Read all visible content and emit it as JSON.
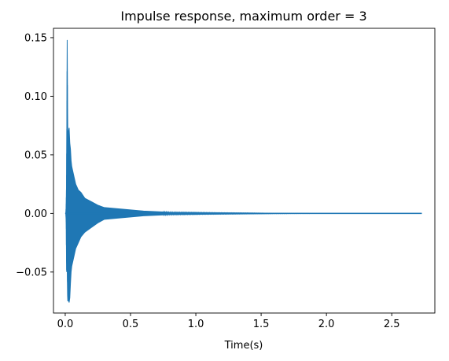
{
  "chart_data": {
    "type": "line",
    "title": "Impulse response, maximum order = 3",
    "xlabel": "Time(s)",
    "ylabel": "",
    "xlim": [
      -0.09,
      2.83
    ],
    "ylim": [
      -0.085,
      0.158
    ],
    "xticks": [
      0.0,
      0.5,
      1.0,
      1.5,
      2.0,
      2.5
    ],
    "xtick_labels": [
      "0.0",
      "0.5",
      "1.0",
      "1.5",
      "2.0",
      "2.5"
    ],
    "yticks": [
      -0.05,
      0.0,
      0.05,
      0.1,
      0.15
    ],
    "ytick_labels": [
      "−0.05",
      "0.00",
      "0.05",
      "0.10",
      "0.15"
    ],
    "grid": false,
    "colors": {
      "line": "#1f77b4",
      "axes": "#000000",
      "background": "#ffffff"
    },
    "series": [
      {
        "x": [
          0.0,
          0.005,
          0.008,
          0.01,
          0.012,
          0.015,
          0.018,
          0.02,
          0.022,
          0.025,
          0.03,
          0.035,
          0.04,
          0.045,
          0.05,
          0.06,
          0.07,
          0.08,
          0.1,
          0.12,
          0.15,
          0.2,
          0.25,
          0.3,
          0.4,
          0.5,
          0.6,
          0.7,
          0.8,
          1.0,
          1.2,
          1.4,
          1.6,
          1.8,
          2.0,
          2.2,
          2.4,
          2.6,
          2.73
        ],
        "upper": [
          0.0,
          0.0,
          0.01,
          0.027,
          0.07,
          0.148,
          0.09,
          0.065,
          0.055,
          0.07,
          0.073,
          0.06,
          0.055,
          0.045,
          0.04,
          0.035,
          0.03,
          0.025,
          0.02,
          0.018,
          0.013,
          0.01,
          0.007,
          0.005,
          0.004,
          0.003,
          0.002,
          0.0015,
          0.001,
          0.0008,
          0.0006,
          0.0004,
          0.0002,
          0.0001,
          0.0,
          0.0,
          0.0,
          0.0,
          0.0
        ],
        "lower": [
          0.0,
          0.0,
          -0.01,
          -0.048,
          -0.05,
          -0.045,
          -0.07,
          -0.075,
          -0.07,
          -0.074,
          -0.076,
          -0.072,
          -0.06,
          -0.05,
          -0.045,
          -0.04,
          -0.035,
          -0.03,
          -0.025,
          -0.02,
          -0.016,
          -0.012,
          -0.008,
          -0.005,
          -0.004,
          -0.003,
          -0.002,
          -0.0015,
          -0.001,
          -0.0008,
          -0.0006,
          -0.0004,
          -0.0002,
          -0.0001,
          0.0,
          0.0,
          0.0,
          0.0,
          0.0
        ]
      }
    ]
  }
}
